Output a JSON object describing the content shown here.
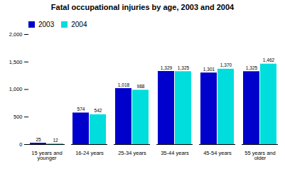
{
  "chart_data": {
    "type": "bar",
    "title": "Fatal occupational injuries by age, 2003 and 2004",
    "categories": [
      "15 years and\nyounger",
      "16-24 years",
      "25-34 years",
      "35-44 years",
      "45-54 years",
      "55 years and\nolder"
    ],
    "series": [
      {
        "name": "2003",
        "color": "#0000CC",
        "values": [
          25,
          574,
          1018,
          1329,
          1301,
          1325
        ],
        "value_labels": [
          "25",
          "574",
          "1,018",
          "1,329",
          "1,301",
          "1,325"
        ]
      },
      {
        "name": "2004",
        "color": "#00DDDD",
        "values": [
          12,
          542,
          988,
          1325,
          1370,
          1462
        ],
        "value_labels": [
          "12",
          "542",
          "988",
          "1,325",
          "1,370",
          "1,462"
        ]
      }
    ],
    "ylim": [
      0,
      2000
    ],
    "yticks": [
      0,
      500,
      {
        "value": 1000,
        "label": "1,000"
      },
      {
        "value": 1500,
        "label": "1,500"
      },
      {
        "value": 2000,
        "label": "2,000"
      }
    ],
    "grid": false,
    "legend": "upper left",
    "data_labels": true
  }
}
